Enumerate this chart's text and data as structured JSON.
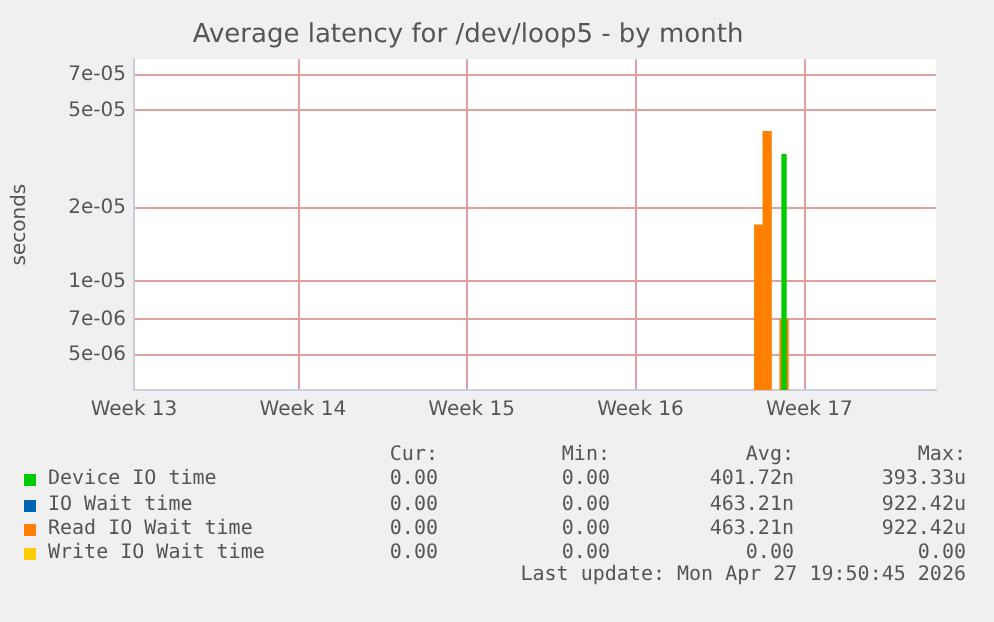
{
  "chart_data": {
    "type": "bar",
    "title": "Average latency for /dev/loop5 - by month",
    "ylabel": "seconds",
    "log": "y",
    "grid": true,
    "legend": "bottom",
    "categories": [
      "Week 13",
      null,
      null,
      null,
      null,
      null,
      null,
      null,
      null,
      null,
      null,
      null,
      null,
      null,
      null,
      null,
      null,
      null,
      null,
      null,
      "Week 14",
      null,
      null,
      null,
      null,
      null,
      null,
      null,
      null,
      null,
      null,
      null,
      null,
      null,
      null,
      null,
      null,
      null,
      null,
      null,
      "Week 15",
      null,
      null,
      null,
      null,
      null,
      null,
      null,
      null,
      null,
      null,
      null,
      null,
      null,
      null,
      null,
      null,
      null,
      null,
      null,
      "Week 16",
      null,
      null,
      null,
      null,
      null,
      null,
      null,
      null,
      null,
      null,
      null,
      null,
      null,
      null,
      null,
      null,
      null,
      null,
      null,
      "Week 17",
      null,
      null,
      null,
      null,
      null,
      null,
      null,
      null,
      null,
      null,
      null,
      null,
      null,
      null,
      null
    ],
    "ylim": [
      3.6e-06,
      8.1e-05
    ],
    "yticks": [
      {
        "value": 5e-06,
        "label": "5e-06"
      },
      {
        "value": 7e-06,
        "label": "7e-06"
      },
      {
        "value": 1e-05,
        "label": "1e-05"
      },
      {
        "value": 2e-05,
        "label": "2e-05"
      },
      {
        "value": 5e-05,
        "label": "5e-05"
      },
      {
        "value": 7e-05,
        "label": "7e-05"
      }
    ],
    "series": [
      {
        "name": "Device IO time",
        "color": "#00cc00",
        "values": [
          null,
          null,
          null,
          null,
          null,
          null,
          null,
          null,
          null,
          null,
          null,
          null,
          null,
          null,
          null,
          null,
          null,
          null,
          null,
          null,
          null,
          null,
          null,
          null,
          null,
          null,
          null,
          null,
          null,
          null,
          null,
          null,
          null,
          null,
          null,
          null,
          null,
          null,
          null,
          null,
          null,
          null,
          null,
          null,
          null,
          null,
          null,
          null,
          null,
          null,
          null,
          null,
          null,
          null,
          null,
          null,
          null,
          null,
          null,
          null,
          null,
          null,
          null,
          null,
          null,
          null,
          null,
          null,
          null,
          null,
          null,
          null,
          null,
          null,
          null,
          null,
          null,
          3.3e-05,
          null,
          null,
          null,
          null,
          null,
          null,
          null,
          null,
          null,
          null,
          null,
          null,
          null,
          null,
          null,
          null,
          null,
          null
        ]
      },
      {
        "name": "IO Wait time",
        "color": "#0066b3",
        "values": [
          null,
          null,
          null,
          null,
          null,
          null,
          null,
          null,
          null,
          null,
          null,
          null,
          null,
          null,
          null,
          null,
          null,
          null,
          null,
          null,
          null,
          null,
          null,
          null,
          null,
          null,
          null,
          null,
          null,
          null,
          null,
          null,
          null,
          null,
          null,
          null,
          null,
          null,
          null,
          null,
          null,
          null,
          null,
          null,
          null,
          null,
          null,
          null,
          null,
          null,
          null,
          null,
          null,
          null,
          null,
          null,
          null,
          null,
          null,
          null,
          null,
          null,
          null,
          null,
          null,
          null,
          null,
          null,
          null,
          null,
          null,
          null,
          null,
          null,
          null,
          null,
          null,
          null,
          null,
          null,
          null,
          null,
          null,
          null,
          null,
          null,
          null,
          null,
          null,
          null,
          null,
          null,
          null,
          null,
          null,
          null
        ]
      },
      {
        "name": "Read IO Wait time",
        "color": "#ff8000",
        "values": [
          null,
          null,
          null,
          null,
          null,
          null,
          null,
          null,
          null,
          null,
          null,
          null,
          null,
          null,
          null,
          null,
          null,
          null,
          null,
          null,
          null,
          null,
          null,
          null,
          null,
          null,
          null,
          null,
          null,
          null,
          null,
          null,
          null,
          null,
          null,
          null,
          null,
          null,
          null,
          null,
          null,
          null,
          null,
          null,
          null,
          null,
          null,
          null,
          null,
          null,
          null,
          null,
          null,
          null,
          null,
          null,
          null,
          null,
          null,
          null,
          null,
          null,
          null,
          null,
          null,
          null,
          null,
          null,
          null,
          null,
          null,
          null,
          null,
          null,
          1.7e-05,
          4.1e-05,
          null,
          7e-06,
          null,
          null,
          null,
          null,
          null,
          null,
          null,
          null,
          null,
          null,
          null,
          null,
          null,
          null,
          null,
          null,
          null,
          null
        ]
      },
      {
        "name": "Write IO Wait time",
        "color": "#ffcc00",
        "values": [
          null,
          null,
          null,
          null,
          null,
          null,
          null,
          null,
          null,
          null,
          null,
          null,
          null,
          null,
          null,
          null,
          null,
          null,
          null,
          null,
          null,
          null,
          null,
          null,
          null,
          null,
          null,
          null,
          null,
          null,
          null,
          null,
          null,
          null,
          null,
          null,
          null,
          null,
          null,
          null,
          null,
          null,
          null,
          null,
          null,
          null,
          null,
          null,
          null,
          null,
          null,
          null,
          null,
          null,
          null,
          null,
          null,
          null,
          null,
          null,
          null,
          null,
          null,
          null,
          null,
          null,
          null,
          null,
          null,
          null,
          null,
          null,
          null,
          null,
          null,
          null,
          null,
          null,
          null,
          null,
          null,
          null,
          null,
          null,
          null,
          null,
          null,
          null,
          null,
          null,
          null,
          null,
          null,
          null,
          null,
          null
        ]
      }
    ],
    "annotations": [
      "Cur:",
      "Min:",
      "Avg:",
      "Max:",
      "0.00",
      "0.00",
      "401.72n",
      "393.33u",
      "0.00",
      "0.00",
      "463.21n",
      "922.42u",
      "0.00",
      "0.00",
      "463.21n",
      "922.42u",
      "0.00",
      "0.00",
      "0.00",
      "0.00",
      "Last update: Mon Apr 27 19:50:45 2026"
    ]
  }
}
